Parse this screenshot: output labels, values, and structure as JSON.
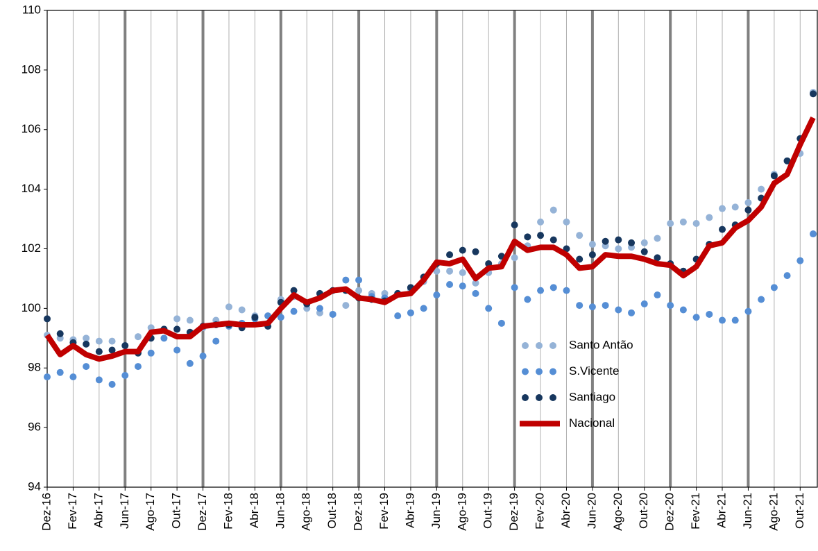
{
  "chart_data": {
    "type": "line",
    "categories": [
      "Dez-16",
      null,
      "Fev-17",
      null,
      "Abr-17",
      null,
      "Jun-17",
      null,
      "Ago-17",
      null,
      "Out-17",
      null,
      "Dez-17",
      null,
      "Fev-18",
      null,
      "Abr-18",
      null,
      "Jun-18",
      null,
      "Ago-18",
      null,
      "Out-18",
      null,
      "Dez-18",
      null,
      "Fev-19",
      null,
      "Abr-19",
      null,
      "Jun-19",
      null,
      "Ago-19",
      null,
      "Out-19",
      null,
      "Dez-19",
      null,
      "Fev-20",
      null,
      "Abr-20",
      null,
      "Jun-20",
      null,
      "Ago-20",
      null,
      "Out-20",
      null,
      "Dez-20",
      null,
      "Fev-21",
      null,
      "Abr-21",
      null,
      "Jun-21",
      null,
      "Ago-21",
      null,
      "Out-21",
      null
    ],
    "series": [
      {
        "name": "Santo Antão",
        "color": "#95b3d7",
        "style": "dots",
        "values": [
          99.1,
          99.0,
          98.95,
          99.0,
          98.9,
          98.9,
          98.75,
          99.05,
          99.35,
          99.3,
          99.65,
          99.6,
          99.35,
          99.6,
          100.05,
          99.95,
          99.75,
          99.5,
          100.3,
          100.4,
          100.0,
          99.85,
          99.8,
          100.1,
          100.6,
          100.5,
          100.5,
          100.5,
          100.65,
          100.9,
          101.25,
          101.25,
          101.2,
          100.85,
          101.2,
          101.5,
          101.7,
          102.1,
          102.9,
          103.3,
          102.9,
          102.45,
          102.15,
          102.1,
          102.0,
          102.05,
          102.2,
          102.35,
          102.85,
          102.9,
          102.85,
          103.05,
          103.35,
          103.4,
          103.55,
          104.0,
          104.5,
          104.95,
          105.2,
          107.25
        ]
      },
      {
        "name": "S.Vicente",
        "color": "#558ed5",
        "style": "dots",
        "values": [
          97.7,
          97.85,
          97.7,
          98.05,
          97.6,
          97.45,
          97.75,
          98.05,
          98.5,
          99.0,
          98.6,
          98.15,
          98.4,
          98.9,
          99.4,
          99.5,
          99.65,
          99.75,
          99.7,
          99.9,
          100.15,
          100.0,
          99.8,
          100.95,
          100.95,
          100.4,
          100.35,
          99.75,
          99.85,
          100.0,
          100.45,
          100.8,
          100.75,
          100.5,
          100.0,
          99.5,
          100.7,
          100.3,
          100.6,
          100.7,
          100.6,
          100.1,
          100.05,
          100.1,
          99.95,
          99.85,
          100.15,
          100.45,
          100.1,
          99.95,
          99.7,
          99.8,
          99.6,
          99.6,
          99.9,
          100.3,
          100.7,
          101.1,
          101.6,
          102.5
        ]
      },
      {
        "name": "Santiago",
        "color": "#17375e",
        "style": "dots",
        "values": [
          99.65,
          99.15,
          98.85,
          98.8,
          98.55,
          98.6,
          98.75,
          98.5,
          99.0,
          99.3,
          99.3,
          99.2,
          99.4,
          99.45,
          99.45,
          99.35,
          99.7,
          99.4,
          100.2,
          100.6,
          100.15,
          100.5,
          100.6,
          100.6,
          100.35,
          100.3,
          100.25,
          100.5,
          100.7,
          101.05,
          101.5,
          101.8,
          101.95,
          101.9,
          101.5,
          101.75,
          102.8,
          102.4,
          102.45,
          102.3,
          102.0,
          101.65,
          101.8,
          102.25,
          102.3,
          102.2,
          101.9,
          101.7,
          101.5,
          101.25,
          101.65,
          102.15,
          102.65,
          102.8,
          103.3,
          103.7,
          104.45,
          104.95,
          105.7,
          107.2
        ]
      },
      {
        "name": "Nacional",
        "color": "#c00000",
        "style": "line",
        "values": [
          99.1,
          98.45,
          98.75,
          98.45,
          98.3,
          98.4,
          98.55,
          98.55,
          99.2,
          99.25,
          99.05,
          99.05,
          99.4,
          99.45,
          99.5,
          99.45,
          99.45,
          99.5,
          100.0,
          100.45,
          100.2,
          100.35,
          100.6,
          100.65,
          100.35,
          100.3,
          100.2,
          100.45,
          100.5,
          100.95,
          101.55,
          101.5,
          101.65,
          101.0,
          101.35,
          101.4,
          102.25,
          101.95,
          102.05,
          102.05,
          101.8,
          101.35,
          101.4,
          101.8,
          101.75,
          101.75,
          101.65,
          101.5,
          101.45,
          101.1,
          101.4,
          102.1,
          102.2,
          102.7,
          102.95,
          103.4,
          104.2,
          104.5,
          105.5,
          106.4
        ]
      }
    ],
    "ylim": [
      94,
      110
    ],
    "yticks": [
      94,
      96,
      98,
      100,
      102,
      104,
      106,
      108,
      110
    ],
    "grid": true,
    "legend": "right"
  }
}
